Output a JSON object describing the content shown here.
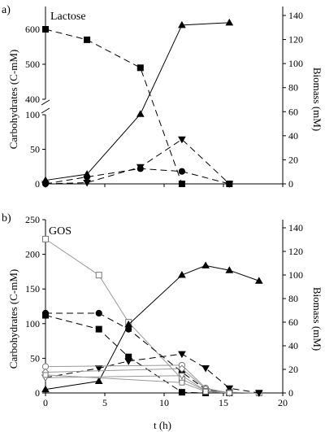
{
  "chart_data": [
    {
      "panel_label": "a)",
      "type": "line",
      "title": "Lactose",
      "xlabel": "",
      "ylabel": "Carbohydrates (C-mM)",
      "y2label": "Biomass (mM)",
      "xlim": [
        0,
        20
      ],
      "ylim_lower": [
        0,
        100
      ],
      "ylim_upper": [
        400,
        600
      ],
      "y_axis_break": true,
      "y2lim": [
        0,
        140
      ],
      "y_ticks": [
        "0",
        "50",
        "100",
        "400",
        "500",
        "600"
      ],
      "y2_ticks": [
        "0",
        "20",
        "40",
        "60",
        "80",
        "100",
        "120",
        "140"
      ],
      "series": [
        {
          "marker": "square-filled",
          "style": "dashed",
          "axis": "left",
          "x": [
            0,
            3.5,
            8,
            11.5,
            15.5
          ],
          "y": [
            600,
            570,
            490,
            0,
            0
          ]
        },
        {
          "marker": "circle-filled",
          "style": "dashed",
          "axis": "left",
          "x": [
            0,
            3.5,
            8,
            11.5,
            15.5
          ],
          "y": [
            0,
            10,
            22,
            18,
            0
          ]
        },
        {
          "marker": "triangle-down-filled",
          "style": "dashed",
          "axis": "right",
          "x": [
            0,
            3.5,
            8,
            11.5,
            15.5
          ],
          "y": [
            0,
            1,
            14,
            37,
            0
          ]
        },
        {
          "marker": "triangle-up-filled",
          "style": "solid",
          "axis": "right",
          "x": [
            0,
            3.5,
            8,
            11.5,
            15.5
          ],
          "y": [
            3,
            8,
            58,
            132,
            134
          ]
        }
      ]
    },
    {
      "panel_label": "b)",
      "type": "line",
      "title": "GOS",
      "xlabel": "t (h)",
      "ylabel": "Carbohydrates (C-mM)",
      "y2label": "Biomass (mM)",
      "xlim": [
        0,
        20
      ],
      "ylim": [
        0,
        250
      ],
      "y2lim": [
        0,
        140
      ],
      "x_ticks": [
        "0",
        "5",
        "10",
        "15",
        "20"
      ],
      "y_ticks": [
        "0",
        "50",
        "100",
        "150",
        "200",
        "250"
      ],
      "y2_ticks": [
        "0",
        "20",
        "40",
        "60",
        "80",
        "100",
        "120",
        "140"
      ],
      "series": [
        {
          "marker": "square-open",
          "style": "solid-gray",
          "axis": "left",
          "x": [
            0,
            4.5,
            7,
            11.5,
            13.5,
            15.5,
            18
          ],
          "y": [
            222,
            170,
            102,
            20,
            3,
            1,
            0
          ]
        },
        {
          "marker": "circle-filled",
          "style": "dashed",
          "axis": "left",
          "x": [
            0,
            4.5,
            7,
            11.5,
            13.5,
            15.5
          ],
          "y": [
            115,
            115,
            92,
            30,
            5,
            0
          ]
        },
        {
          "marker": "square-filled",
          "style": "dashed",
          "axis": "left",
          "x": [
            0,
            4.5,
            7,
            11.5,
            13.5,
            15.5
          ],
          "y": [
            112,
            92,
            52,
            1,
            0,
            0
          ]
        },
        {
          "marker": "triangle-down-filled",
          "style": "dashed",
          "axis": "right",
          "x": [
            0,
            4.5,
            7,
            11.5,
            13.5,
            15.5,
            18
          ],
          "y": [
            13,
            21,
            27,
            33,
            21,
            4,
            0
          ]
        },
        {
          "marker": "triangle-up-filled",
          "style": "solid",
          "axis": "right",
          "x": [
            0,
            4.5,
            7,
            11.5,
            13.5,
            15.5,
            18
          ],
          "y": [
            3,
            10,
            58,
            100,
            108,
            104,
            95
          ]
        },
        {
          "marker": "circle-open",
          "style": "solid-gray",
          "axis": "left",
          "x": [
            0,
            11.5,
            13.5,
            15.5
          ],
          "y": [
            38,
            40,
            7,
            0
          ]
        },
        {
          "marker": "diamond-open",
          "style": "solid-gray",
          "axis": "left",
          "x": [
            0,
            11.5,
            13.5,
            15.5
          ],
          "y": [
            30,
            35,
            6,
            0
          ]
        },
        {
          "marker": "triangle-down-open",
          "style": "solid-gray",
          "axis": "left",
          "x": [
            0,
            11.5,
            13.5,
            15.5
          ],
          "y": [
            22,
            25,
            3,
            0
          ]
        },
        {
          "marker": "square-open-small",
          "style": "solid-gray",
          "axis": "left",
          "x": [
            0,
            11.5,
            13.5,
            15.5
          ],
          "y": [
            26,
            15,
            2,
            0
          ]
        }
      ]
    }
  ]
}
